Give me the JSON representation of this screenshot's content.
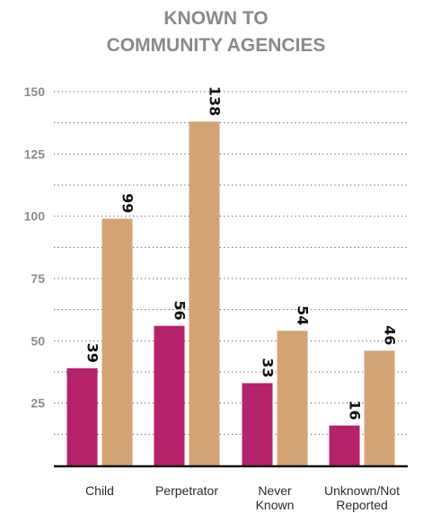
{
  "chart_data": {
    "type": "bar",
    "title_lines": [
      "KNOWN TO",
      "COMMUNITY AGENCIES"
    ],
    "categories": [
      [
        "Child"
      ],
      [
        "Perpetrator"
      ],
      [
        "Never",
        "Known"
      ],
      [
        "Unknown/Not",
        "Reported"
      ]
    ],
    "series": [
      {
        "color": "#b5216b",
        "values": [
          39,
          56,
          33,
          16
        ]
      },
      {
        "color": "#d4a373",
        "values": [
          99,
          138,
          54,
          46
        ]
      }
    ],
    "ylim": [
      0,
      150
    ],
    "yticks": [
      25,
      50,
      75,
      100,
      125,
      150
    ],
    "minor_grid_step": 12.5,
    "grid": true,
    "xlabel": "",
    "ylabel": ""
  }
}
